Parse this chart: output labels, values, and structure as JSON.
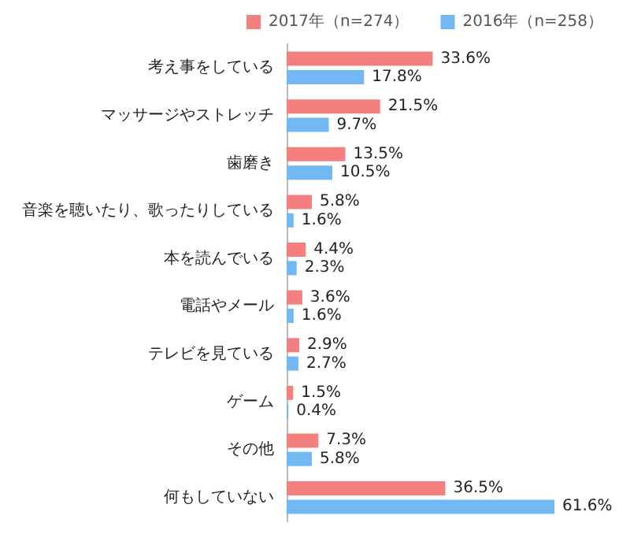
{
  "chart_data": {
    "type": "bar",
    "orientation": "horizontal",
    "categories": [
      "考え事をしている",
      "マッサージやストレッチ",
      "歯磨き",
      "音楽を聴いたり、歌ったりしている",
      "本を読んでいる",
      "電話やメール",
      "テレビを見ている",
      "ゲーム",
      "その他",
      "何もしていない"
    ],
    "series": [
      {
        "name": "2017年（n=274）",
        "color": "#f47f7f",
        "values": [
          33.6,
          21.5,
          13.5,
          5.8,
          4.4,
          3.6,
          2.9,
          1.5,
          7.3,
          36.5
        ],
        "value_labels": [
          "33.6%",
          "21.5%",
          "13.5%",
          "5.8%",
          "4.4%",
          "3.6%",
          "2.9%",
          "1.5%",
          "7.3%",
          "36.5%"
        ]
      },
      {
        "name": "2016年（n=258）",
        "color": "#72b9f3",
        "values": [
          17.8,
          9.7,
          10.5,
          1.6,
          2.3,
          1.6,
          2.7,
          0.4,
          5.8,
          61.6
        ],
        "value_labels": [
          "17.8%",
          "9.7%",
          "10.5%",
          "1.6%",
          "2.3%",
          "1.6%",
          "2.7%",
          "0.4%",
          "5.8%",
          "61.6%"
        ]
      }
    ],
    "legend": "top",
    "tick_labels": "y"
  }
}
